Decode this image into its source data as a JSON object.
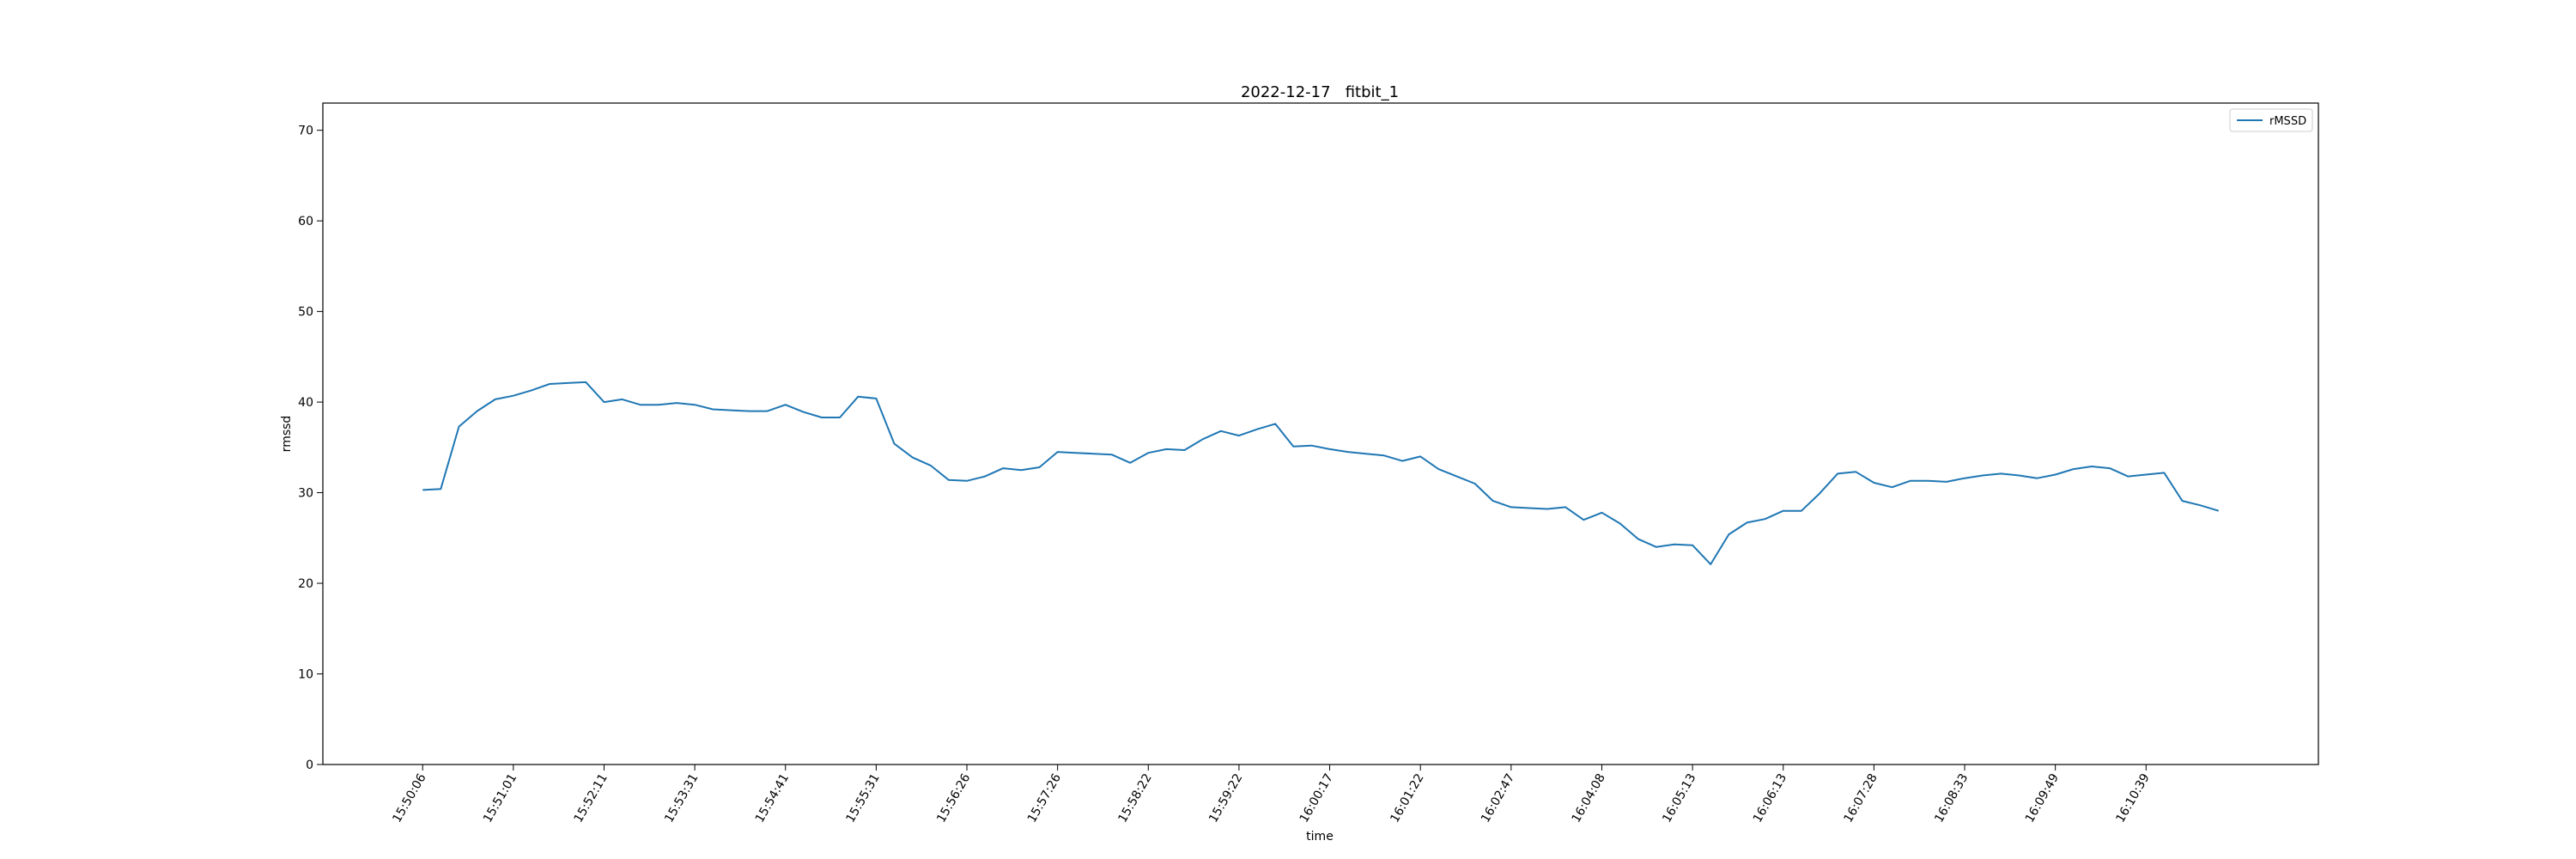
{
  "chart_data": {
    "type": "line",
    "title": "2022-12-17   fitbit_1",
    "xlabel": "time",
    "ylabel": "rmssd",
    "ylim": [
      0,
      73
    ],
    "yticks": [
      0,
      10,
      20,
      30,
      40,
      50,
      60,
      70
    ],
    "xlim": [
      -5.5,
      104.5
    ],
    "grid": false,
    "legend_position": "top-right",
    "line_color": "#1f77b4",
    "x_tick_positions": [
      0,
      5,
      10,
      15,
      20,
      25,
      30,
      35,
      40,
      45,
      50,
      55,
      60,
      65,
      70,
      75,
      80,
      85,
      90,
      95
    ],
    "x_tick_labels": [
      "15:50:06",
      "15:51:01",
      "15:52:11",
      "15:53:31",
      "15:54:41",
      "15:55:31",
      "15:56:26",
      "15:57:26",
      "15:58:22",
      "15:59:22",
      "16:00:17",
      "16:01:22",
      "16:02:47",
      "16:04:08",
      "16:05:13",
      "16:06:13",
      "16:07:28",
      "16:08:33",
      "16:09:49",
      "16:10:39"
    ],
    "series": [
      {
        "name": "rMSSD",
        "values": [
          30.3,
          30.4,
          37.3,
          39.0,
          40.3,
          40.7,
          41.3,
          42.0,
          42.1,
          42.2,
          40.0,
          40.3,
          39.7,
          39.7,
          39.9,
          39.7,
          39.2,
          39.1,
          39.0,
          39.0,
          39.7,
          38.9,
          38.3,
          38.3,
          40.6,
          40.4,
          35.4,
          33.9,
          33.0,
          31.4,
          31.3,
          31.8,
          32.7,
          32.5,
          32.8,
          34.5,
          34.4,
          34.3,
          34.2,
          33.3,
          34.4,
          34.8,
          34.7,
          35.9,
          36.8,
          36.3,
          37.0,
          37.6,
          35.1,
          35.2,
          34.8,
          34.5,
          34.3,
          34.1,
          33.5,
          34.0,
          32.6,
          31.8,
          31.0,
          29.1,
          28.4,
          28.3,
          28.2,
          28.4,
          27.0,
          27.8,
          26.6,
          24.9,
          24.0,
          24.3,
          24.2,
          22.1,
          25.4,
          26.7,
          27.1,
          28.0,
          28.0,
          29.9,
          32.1,
          32.3,
          31.1,
          30.6,
          31.3,
          31.3,
          31.2,
          31.6,
          31.9,
          32.1,
          31.9,
          31.6,
          32.0,
          32.6,
          32.9,
          32.7,
          31.8,
          32.0,
          32.2,
          29.1,
          28.6,
          28.0
        ]
      }
    ]
  }
}
